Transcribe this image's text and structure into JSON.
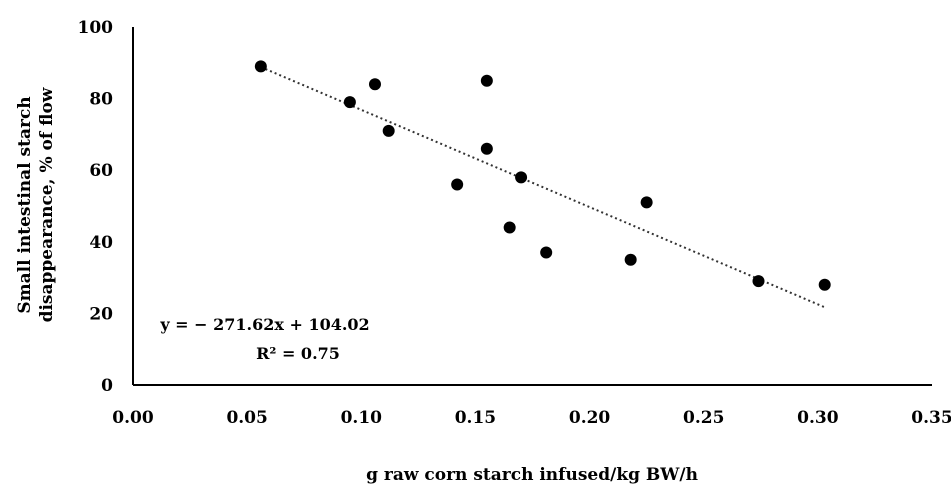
{
  "chart_data": {
    "type": "scatter",
    "title": "",
    "xlabel": "g raw corn starch infused/kg BW/h",
    "ylabel_lines": [
      "Small intestinal starch",
      "disappearance, % of flow"
    ],
    "xlim": [
      0,
      0.35
    ],
    "ylim": [
      0,
      100
    ],
    "x_ticks": [
      "0.00",
      "0.05",
      "0.10",
      "0.15",
      "0.20",
      "0.25",
      "0.30",
      "0.35"
    ],
    "y_ticks": [
      "0",
      "20",
      "40",
      "60",
      "80",
      "100"
    ],
    "grid": false,
    "points": [
      {
        "x": 0.056,
        "y": 89
      },
      {
        "x": 0.095,
        "y": 79
      },
      {
        "x": 0.106,
        "y": 84
      },
      {
        "x": 0.112,
        "y": 71
      },
      {
        "x": 0.142,
        "y": 56
      },
      {
        "x": 0.155,
        "y": 85
      },
      {
        "x": 0.155,
        "y": 66
      },
      {
        "x": 0.165,
        "y": 44
      },
      {
        "x": 0.17,
        "y": 58
      },
      {
        "x": 0.181,
        "y": 37
      },
      {
        "x": 0.218,
        "y": 35
      },
      {
        "x": 0.225,
        "y": 51
      },
      {
        "x": 0.274,
        "y": 29
      },
      {
        "x": 0.303,
        "y": 28
      }
    ],
    "trendline": {
      "slope": -271.62,
      "intercept": 104.02,
      "x_from": 0.056,
      "x_to": 0.303,
      "style": "dotted"
    },
    "annotations": {
      "equation": "y = − 271.62x + 104.02",
      "r2": "R² = 0.75"
    }
  }
}
